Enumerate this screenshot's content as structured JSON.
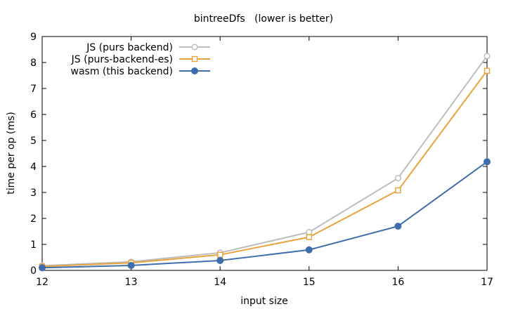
{
  "chart_data": {
    "type": "line",
    "title": "bintreeDfs   (lower is better)",
    "xlabel": "input size",
    "ylabel": "time per op (ms)",
    "x": [
      12,
      13,
      14,
      15,
      16,
      17
    ],
    "xlim": [
      12,
      17
    ],
    "ylim": [
      0,
      9
    ],
    "xticks": [
      "12",
      "13",
      "14",
      "15",
      "16",
      "17"
    ],
    "yticks": [
      "0",
      "1",
      "2",
      "3",
      "4",
      "5",
      "6",
      "7",
      "8",
      "9"
    ],
    "grid": false,
    "legend_position": "top-left",
    "series": [
      {
        "name": "JS (purs backend)",
        "color": "#bdbdbd",
        "marker": "open-circle",
        "values": [
          0.18,
          0.33,
          0.68,
          1.47,
          3.55,
          8.25
        ]
      },
      {
        "name": "JS (purs-backend-es)",
        "color": "#e8a33d",
        "marker": "open-square",
        "values": [
          0.15,
          0.29,
          0.6,
          1.28,
          3.08,
          7.68
        ]
      },
      {
        "name": "wasm (this backend)",
        "color": "#3f6ead",
        "marker": "filled-circle",
        "values": [
          0.1,
          0.19,
          0.38,
          0.79,
          1.7,
          4.18
        ]
      }
    ]
  }
}
